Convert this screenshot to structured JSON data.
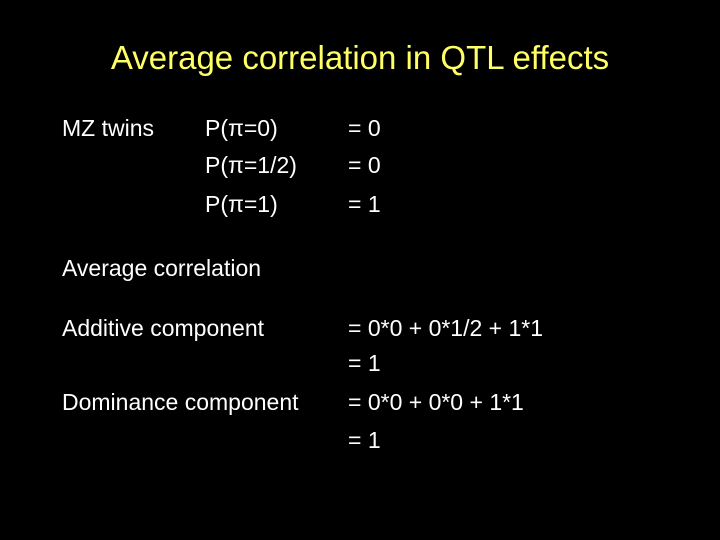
{
  "title": "Average correlation in QTL effects",
  "mz": {
    "label": "MZ twins",
    "rows": [
      {
        "prob": "P(π=0)",
        "value": "= 0"
      },
      {
        "prob": "P(π=1/2)",
        "value": "= 0"
      },
      {
        "prob": "P(π=1)",
        "value": "= 1"
      }
    ]
  },
  "average": {
    "heading": "Average correlation",
    "rows": [
      {
        "label": "Additive component",
        "lines": [
          "= 0*0 + 0*1/2 + 1*1",
          "= 1"
        ]
      },
      {
        "label": "Dominance component",
        "lines": [
          "= 0*0 + 0*0 + 1*1",
          "= 1"
        ]
      }
    ]
  }
}
